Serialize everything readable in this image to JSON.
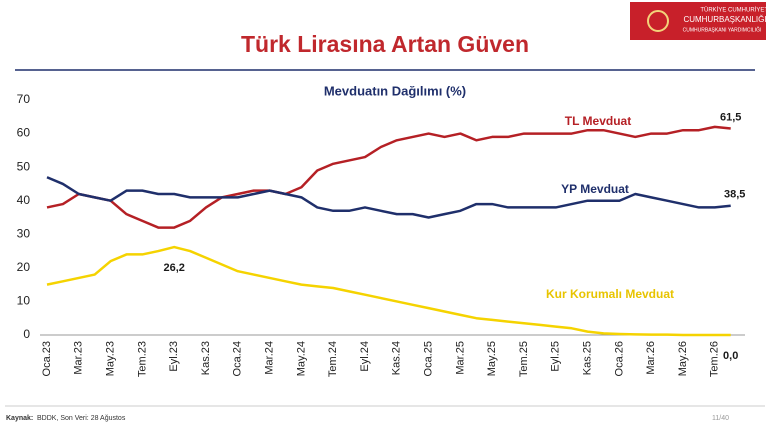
{
  "header": {
    "title": "Türk Lirasına Artan Güven",
    "logo_lines": [
      "TÜRKİYE CUMHURİYETİ",
      "CUMHURBAŞKANLIĞI",
      "CUMHURBAŞKANI YARDIMCILIĞI"
    ]
  },
  "chart_data": {
    "type": "line",
    "title": "Mevduatın Dağılımı (%)",
    "categories": [
      "Oca.23",
      null,
      "Mar.23",
      null,
      "May.23",
      null,
      "Tem.23",
      null,
      "Eyl.23",
      null,
      "Kas.23",
      null,
      "Oca.24",
      null,
      "Mar.24",
      null,
      "May.24",
      null,
      "Tem.24",
      null,
      "Eyl.24",
      null,
      "Kas.24",
      null,
      "Oca.25",
      null,
      "Mar.25",
      null,
      "May.25",
      null,
      "Tem.25",
      null,
      "Eyl.25",
      null,
      "Kas.25",
      null,
      "Oca.26",
      null,
      "Mar.26",
      null,
      "May.26",
      null,
      "Tem.26",
      null
    ],
    "series": [
      {
        "name": "TL Mevduat",
        "color": "#b52025",
        "values": [
          38,
          39,
          42,
          41,
          40,
          36,
          34,
          32,
          32,
          34,
          38,
          41,
          42,
          43,
          43,
          42,
          44,
          49,
          51,
          52,
          53,
          56,
          58,
          59,
          60,
          59,
          60,
          58,
          59,
          59,
          60,
          60,
          60,
          60,
          61,
          61,
          60,
          59,
          60,
          60,
          61,
          61,
          62,
          61.5
        ],
        "value_labels": [
          null,
          null,
          null,
          null,
          null,
          null,
          null,
          null,
          null,
          null,
          null,
          null,
          null,
          null,
          null,
          null,
          null,
          null,
          null,
          null,
          null,
          null,
          null,
          null,
          null,
          null,
          null,
          null,
          null,
          null,
          null,
          null,
          null,
          null,
          null,
          null,
          null,
          null,
          null,
          null,
          null,
          null,
          null,
          "61,5"
        ]
      },
      {
        "name": "YP Mevduat",
        "color": "#1f2f6b",
        "values": [
          47,
          45,
          42,
          41,
          40,
          43,
          43,
          42,
          42,
          41,
          41,
          41,
          41,
          42,
          43,
          42,
          41,
          38,
          37,
          37,
          38,
          37,
          36,
          36,
          35,
          36,
          37,
          39,
          39,
          38,
          38,
          38,
          38,
          39,
          40,
          40,
          40,
          42,
          41,
          40,
          39,
          38,
          38,
          38.5
        ],
        "value_labels": [
          null,
          null,
          null,
          null,
          null,
          null,
          null,
          null,
          null,
          null,
          null,
          null,
          null,
          null,
          null,
          null,
          null,
          null,
          null,
          null,
          null,
          null,
          null,
          null,
          null,
          null,
          null,
          null,
          null,
          null,
          null,
          null,
          null,
          null,
          null,
          null,
          null,
          null,
          null,
          null,
          null,
          null,
          null,
          "38,5"
        ]
      },
      {
        "name": "Kur Korumalı Mevduat",
        "color": "#f5d300",
        "values": [
          15,
          16,
          17,
          18,
          22,
          24,
          24,
          25,
          26.2,
          25,
          23,
          21,
          19,
          18,
          17,
          16,
          15,
          14.5,
          14,
          13,
          12,
          11,
          10,
          9,
          8,
          7,
          6,
          5,
          4.5,
          4,
          3.5,
          3,
          2.5,
          2,
          1,
          0.5,
          0.3,
          0.2,
          0.1,
          0.1,
          0,
          0,
          0,
          0
        ],
        "value_labels": [
          null,
          null,
          null,
          null,
          null,
          null,
          null,
          null,
          "26,2",
          null,
          null,
          null,
          null,
          null,
          null,
          null,
          null,
          null,
          null,
          null,
          null,
          null,
          null,
          null,
          null,
          null,
          null,
          null,
          null,
          null,
          null,
          null,
          null,
          null,
          null,
          null,
          null,
          null,
          null,
          null,
          null,
          null,
          null,
          "0,0"
        ]
      }
    ],
    "ylim": [
      0,
      70
    ],
    "yticks": [
      0,
      10,
      20,
      30,
      40,
      50,
      60,
      70
    ],
    "grid": false
  },
  "footer": {
    "source_label": "Kaynak:",
    "source_text": "BDDK, Son Veri: 28 Ağustos",
    "page": "11/40"
  }
}
